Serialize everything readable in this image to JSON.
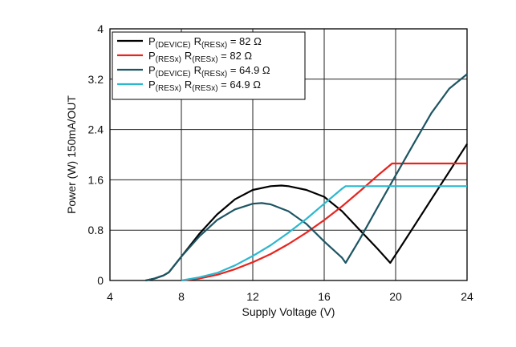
{
  "chart_data": {
    "type": "line",
    "xlabel": "Supply Voltage (V)",
    "ylabel": "Power (W) 150mA/OUT",
    "xlim": [
      4,
      24
    ],
    "ylim": [
      0,
      4
    ],
    "x_ticks": [
      "4",
      "8",
      "12",
      "16",
      "20",
      "24"
    ],
    "y_ticks": [
      "0",
      "0.8",
      "1.6",
      "2.4",
      "3.2",
      "4"
    ],
    "grid": true,
    "legend_position": "top-left",
    "series": [
      {
        "name": "P(DEVICE) R(RESx) = 82 Ω",
        "legend": {
          "p_main": "P",
          "p_sub": "(DEVICE)",
          "r_main": "R",
          "r_sub": "(RESx)",
          "tail": " = 82 Ω"
        },
        "color": "#000000",
        "points": [
          [
            6,
            0
          ],
          [
            6.5,
            0.03
          ],
          [
            7,
            0.08
          ],
          [
            7.3,
            0.13
          ],
          [
            8,
            0.38
          ],
          [
            9,
            0.74
          ],
          [
            10,
            1.05
          ],
          [
            11,
            1.29
          ],
          [
            12,
            1.44
          ],
          [
            13,
            1.5
          ],
          [
            13.6,
            1.51
          ],
          [
            14,
            1.5
          ],
          [
            15,
            1.44
          ],
          [
            16,
            1.33
          ],
          [
            17,
            1.1
          ],
          [
            18,
            0.8
          ],
          [
            19,
            0.5
          ],
          [
            19.7,
            0.28
          ],
          [
            20,
            0.41
          ],
          [
            21,
            0.85
          ],
          [
            22,
            1.29
          ],
          [
            23,
            1.73
          ],
          [
            24,
            2.17
          ]
        ]
      },
      {
        "name": "P(RESx) R(RESx) = 82 Ω",
        "legend": {
          "p_main": "P",
          "p_sub": "(RESx)",
          "r_main": "R",
          "r_sub": "(RESx)",
          "tail": " = 82 Ω"
        },
        "color": "#e8241e",
        "points": [
          [
            8,
            0
          ],
          [
            9,
            0.03
          ],
          [
            10,
            0.09
          ],
          [
            11,
            0.18
          ],
          [
            12,
            0.29
          ],
          [
            13,
            0.42
          ],
          [
            14,
            0.58
          ],
          [
            15,
            0.76
          ],
          [
            16,
            0.96
          ],
          [
            17,
            1.18
          ],
          [
            18,
            1.42
          ],
          [
            19,
            1.67
          ],
          [
            19.8,
            1.86
          ],
          [
            24,
            1.86
          ]
        ]
      },
      {
        "name": "P(DEVICE) R(RESx) = 64.9 Ω",
        "legend": {
          "p_main": "P",
          "p_sub": "(DEVICE)",
          "r_main": "R",
          "r_sub": "(RESx)",
          "tail": " = 64.9 Ω"
        },
        "color": "#1d5563",
        "points": [
          [
            6,
            0
          ],
          [
            6.5,
            0.03
          ],
          [
            7,
            0.08
          ],
          [
            7.3,
            0.13
          ],
          [
            8,
            0.38
          ],
          [
            9,
            0.7
          ],
          [
            10,
            0.96
          ],
          [
            11,
            1.13
          ],
          [
            12,
            1.22
          ],
          [
            12.5,
            1.23
          ],
          [
            13,
            1.21
          ],
          [
            14,
            1.1
          ],
          [
            15,
            0.9
          ],
          [
            16,
            0.62
          ],
          [
            17,
            0.36
          ],
          [
            17.2,
            0.28
          ],
          [
            18,
            0.66
          ],
          [
            19,
            1.17
          ],
          [
            20,
            1.67
          ],
          [
            21,
            2.17
          ],
          [
            22,
            2.66
          ],
          [
            23,
            3.05
          ],
          [
            24,
            3.28
          ]
        ]
      },
      {
        "name": "P(RESx) R(RESx) = 64.9 Ω",
        "legend": {
          "p_main": "P",
          "p_sub": "(RESx)",
          "r_main": "R",
          "r_sub": "(RESx)",
          "tail": " = 64.9 Ω"
        },
        "color": "#2bb8cf",
        "points": [
          [
            8,
            0
          ],
          [
            9,
            0.05
          ],
          [
            10,
            0.12
          ],
          [
            11,
            0.24
          ],
          [
            12,
            0.39
          ],
          [
            13,
            0.56
          ],
          [
            14,
            0.76
          ],
          [
            15,
            0.98
          ],
          [
            16,
            1.22
          ],
          [
            17,
            1.46
          ],
          [
            17.2,
            1.5
          ],
          [
            24,
            1.5
          ]
        ]
      }
    ]
  }
}
